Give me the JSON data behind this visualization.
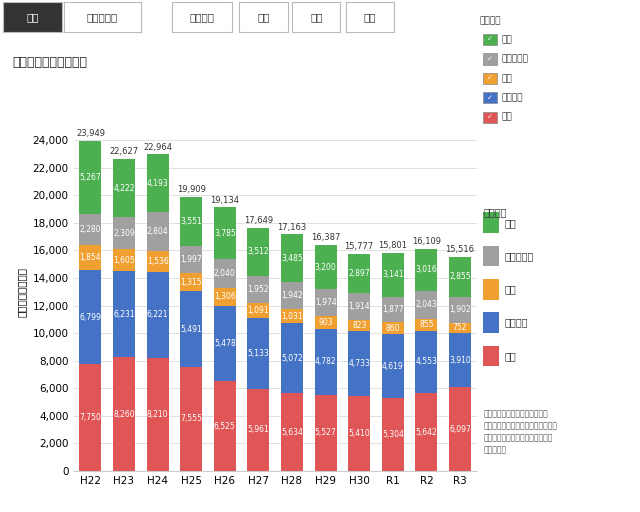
{
  "categories": [
    "H22",
    "H23",
    "H24",
    "H25",
    "H26",
    "H27",
    "H28",
    "H29",
    "H30",
    "R1",
    "R2",
    "R3"
  ],
  "shika": [
    7750,
    8260,
    8210,
    7555,
    6525,
    5961,
    5634,
    5527,
    5410,
    5304,
    5642,
    6097
  ],
  "inoshishi": [
    6799,
    6231,
    6221,
    5491,
    5478,
    5133,
    5072,
    4782,
    4733,
    4619,
    4553,
    3910
  ],
  "saru": [
    1854,
    1605,
    1536,
    1315,
    1306,
    1091,
    1031,
    903,
    823,
    860,
    855,
    752
  ],
  "sonota": [
    2280,
    2309,
    2804,
    1997,
    2040,
    1952,
    1942,
    1974,
    1914,
    1877,
    2043,
    1902
  ],
  "tori": [
    5267,
    4222,
    4193,
    3551,
    3785,
    3512,
    3485,
    3200,
    2897,
    3141,
    3016,
    2855
  ],
  "totals": [
    23949,
    22627,
    22964,
    19909,
    19134,
    17649,
    17163,
    16387,
    15777,
    15801,
    16109,
    15516
  ],
  "color_shika": "#e05555",
  "color_inoshishi": "#4472c4",
  "color_saru": "#f0a030",
  "color_sonota": "#a0a0a0",
  "color_tori": "#4caf50",
  "title": "全国の被害金額の推移",
  "ylabel": "被害額（百万円）",
  "ylim": [
    0,
    26000
  ],
  "yticks": [
    0,
    2000,
    4000,
    6000,
    8000,
    10000,
    12000,
    14000,
    16000,
    18000,
    20000,
    22000,
    24000
  ],
  "legend_labels": [
    "鳥類",
    "その他獣類",
    "サル",
    "イノシシ",
    "シカ"
  ],
  "legend_title": "加害獣種",
  "legend2_labels": [
    "鳥類",
    "その他獣類",
    "サル",
    "イノシシ",
    "シカ"
  ],
  "legend2_title": "加害獣種",
  "tab_labels": [
    "全国",
    "都道府県別",
    "イノシシ",
    "シカ",
    "サル",
    "鳥類"
  ],
  "note": "その他獣類にはクマ、ハクビシ\nン、アライグマ、カモシカ、タヌキ\n、ネズミ、ウサギ、ヌートリア等\nが含まれる",
  "background_color": "#ffffff",
  "bar_width": 0.65,
  "tab_active_bg": "#333333",
  "tab_active_fg": "#ffffff",
  "tab_inactive_bg": "#ffffff",
  "tab_inactive_fg": "#333333"
}
